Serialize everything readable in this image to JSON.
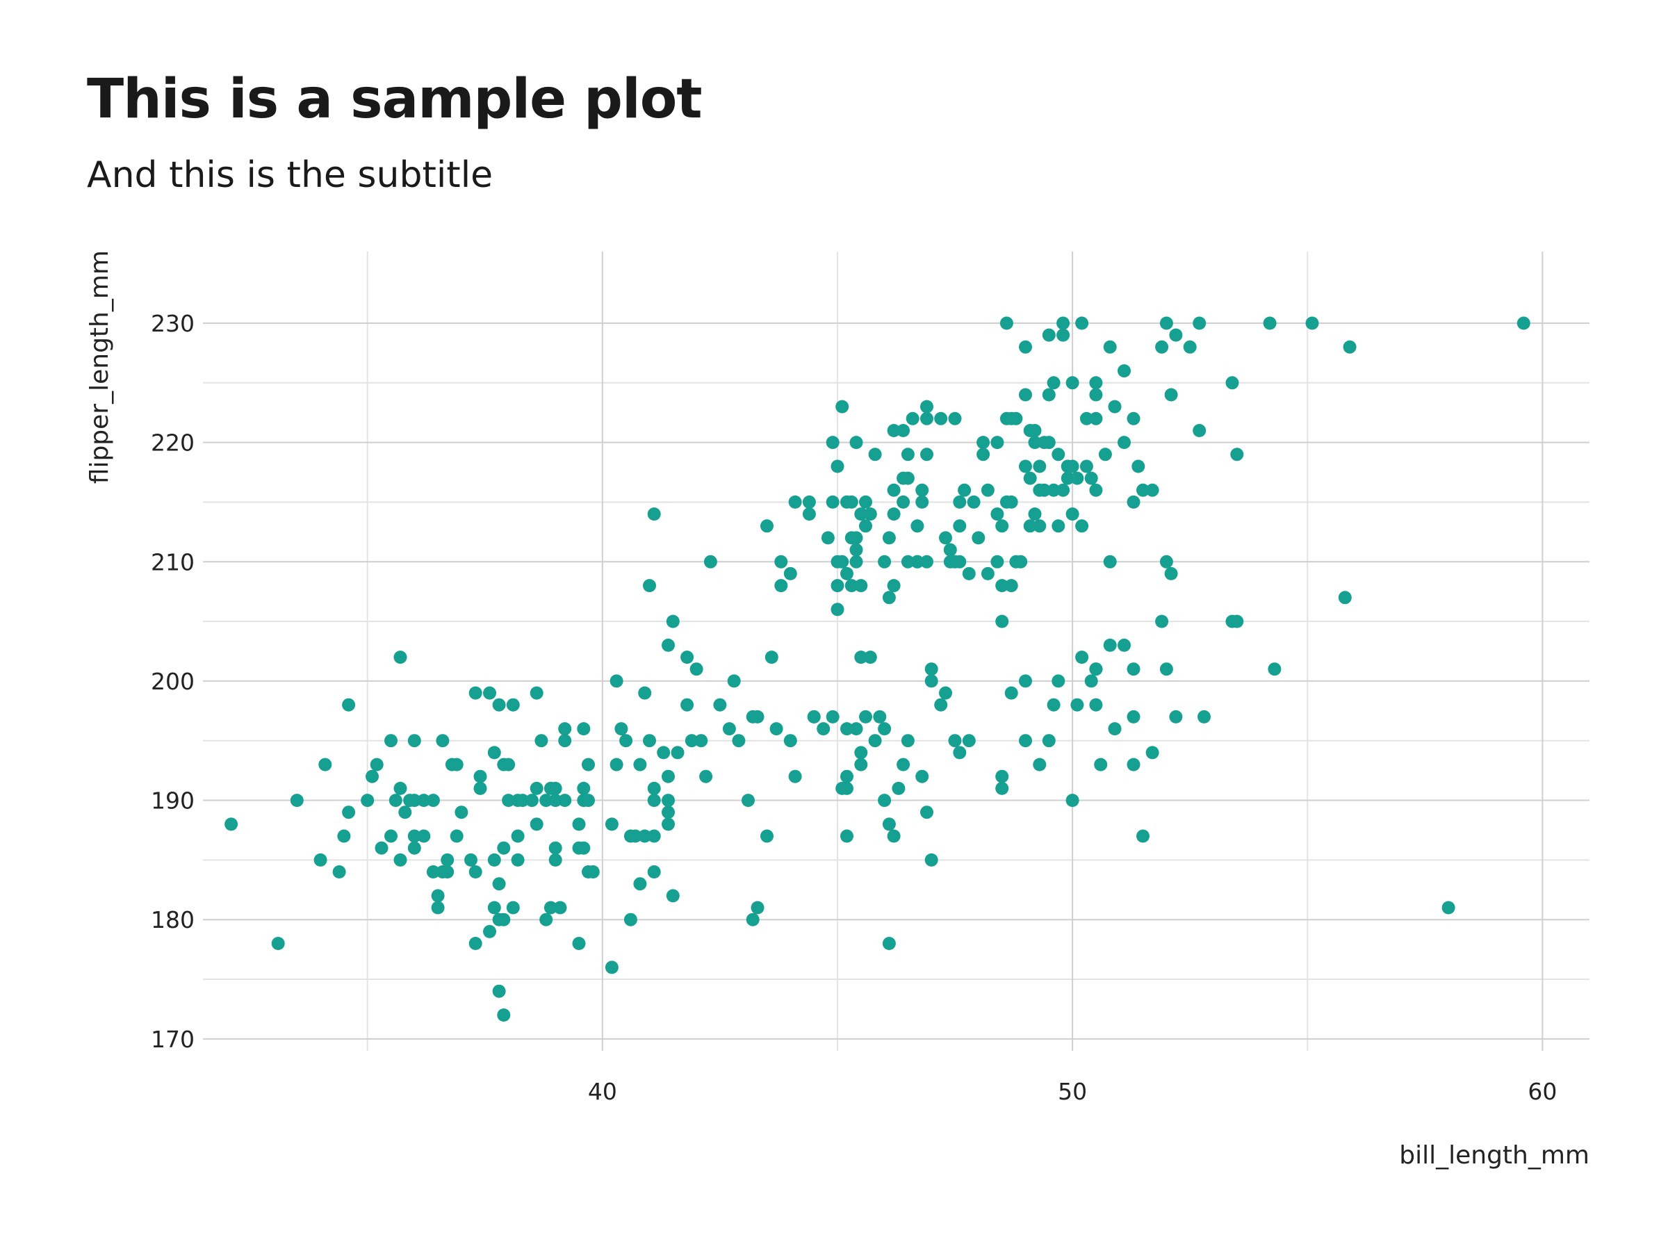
{
  "title": "This is a sample plot",
  "subtitle": "And this is the subtitle",
  "chart_data": {
    "type": "scatter",
    "xlabel": "bill_length_mm",
    "ylabel": "flipper_length_mm",
    "xlim": [
      31.5,
      61
    ],
    "ylim": [
      169,
      236
    ],
    "x_ticks": [
      40,
      50,
      60
    ],
    "y_ticks": [
      170,
      180,
      190,
      200,
      210,
      220,
      230
    ],
    "grid": true,
    "point_color": "#16a092",
    "points": [
      [
        32.1,
        188
      ],
      [
        33.1,
        178
      ],
      [
        33.5,
        190
      ],
      [
        34.0,
        185
      ],
      [
        34.1,
        193
      ],
      [
        34.4,
        184
      ],
      [
        34.5,
        187
      ],
      [
        34.6,
        198
      ],
      [
        34.6,
        189
      ],
      [
        35.0,
        190
      ],
      [
        35.1,
        192
      ],
      [
        35.2,
        193
      ],
      [
        35.3,
        186
      ],
      [
        35.5,
        187
      ],
      [
        35.5,
        195
      ],
      [
        35.6,
        190
      ],
      [
        35.7,
        191
      ],
      [
        35.7,
        185
      ],
      [
        35.7,
        202
      ],
      [
        35.8,
        189
      ],
      [
        35.9,
        190
      ],
      [
        36.0,
        190
      ],
      [
        36.0,
        195
      ],
      [
        36.0,
        186
      ],
      [
        36.0,
        187
      ],
      [
        36.2,
        190
      ],
      [
        36.2,
        187
      ],
      [
        36.4,
        190
      ],
      [
        36.4,
        184
      ],
      [
        36.5,
        181
      ],
      [
        36.5,
        182
      ],
      [
        36.6,
        184
      ],
      [
        36.6,
        195
      ],
      [
        36.7,
        185
      ],
      [
        36.7,
        184
      ],
      [
        36.8,
        193
      ],
      [
        36.9,
        187
      ],
      [
        36.9,
        193
      ],
      [
        37.0,
        189
      ],
      [
        37.2,
        185
      ],
      [
        37.3,
        178
      ],
      [
        37.3,
        184
      ],
      [
        37.3,
        199
      ],
      [
        37.4,
        191
      ],
      [
        37.4,
        192
      ],
      [
        37.6,
        179
      ],
      [
        37.6,
        199
      ],
      [
        37.7,
        185
      ],
      [
        37.7,
        194
      ],
      [
        37.7,
        181
      ],
      [
        37.8,
        174
      ],
      [
        37.8,
        180
      ],
      [
        37.8,
        183
      ],
      [
        37.8,
        198
      ],
      [
        37.9,
        172
      ],
      [
        37.9,
        193
      ],
      [
        37.9,
        186
      ],
      [
        37.9,
        180
      ],
      [
        38.0,
        190
      ],
      [
        38.0,
        193
      ],
      [
        38.1,
        181
      ],
      [
        38.1,
        198
      ],
      [
        38.2,
        185
      ],
      [
        38.2,
        190
      ],
      [
        38.2,
        187
      ],
      [
        38.3,
        190
      ],
      [
        38.5,
        190
      ],
      [
        38.6,
        199
      ],
      [
        38.6,
        188
      ],
      [
        38.6,
        191
      ],
      [
        38.7,
        195
      ],
      [
        38.8,
        190
      ],
      [
        38.8,
        180
      ],
      [
        38.9,
        191
      ],
      [
        38.9,
        181
      ],
      [
        39.0,
        185
      ],
      [
        39.0,
        186
      ],
      [
        39.0,
        190
      ],
      [
        39.0,
        191
      ],
      [
        39.1,
        181
      ],
      [
        39.2,
        190
      ],
      [
        39.2,
        196
      ],
      [
        39.2,
        195
      ],
      [
        39.5,
        188
      ],
      [
        39.5,
        186
      ],
      [
        39.5,
        178
      ],
      [
        39.6,
        190
      ],
      [
        39.6,
        186
      ],
      [
        39.6,
        196
      ],
      [
        39.6,
        191
      ],
      [
        39.7,
        190
      ],
      [
        39.7,
        193
      ],
      [
        39.7,
        184
      ],
      [
        39.8,
        184
      ],
      [
        40.2,
        188
      ],
      [
        40.2,
        176
      ],
      [
        40.3,
        193
      ],
      [
        40.3,
        200
      ],
      [
        40.4,
        196
      ],
      [
        40.5,
        195
      ],
      [
        40.6,
        187
      ],
      [
        40.6,
        180
      ],
      [
        40.7,
        187
      ],
      [
        40.8,
        183
      ],
      [
        40.8,
        193
      ],
      [
        40.9,
        187
      ],
      [
        40.9,
        199
      ],
      [
        41.0,
        195
      ],
      [
        41.0,
        208
      ],
      [
        41.1,
        190
      ],
      [
        41.1,
        191
      ],
      [
        41.1,
        214
      ],
      [
        41.1,
        184
      ],
      [
        41.1,
        187
      ],
      [
        41.3,
        194
      ],
      [
        41.4,
        190
      ],
      [
        41.4,
        189
      ],
      [
        41.4,
        188
      ],
      [
        41.4,
        192
      ],
      [
        41.4,
        203
      ],
      [
        41.5,
        182
      ],
      [
        41.5,
        205
      ],
      [
        41.6,
        194
      ],
      [
        41.8,
        198
      ],
      [
        41.8,
        202
      ],
      [
        41.9,
        195
      ],
      [
        42.0,
        201
      ],
      [
        42.1,
        195
      ],
      [
        42.2,
        192
      ],
      [
        42.3,
        210
      ],
      [
        42.5,
        198
      ],
      [
        42.7,
        196
      ],
      [
        42.8,
        200
      ],
      [
        42.9,
        195
      ],
      [
        43.1,
        190
      ],
      [
        43.2,
        180
      ],
      [
        43.2,
        197
      ],
      [
        43.3,
        197
      ],
      [
        43.3,
        181
      ],
      [
        43.5,
        187
      ],
      [
        43.5,
        213
      ],
      [
        43.6,
        202
      ],
      [
        43.7,
        196
      ],
      [
        43.8,
        210
      ],
      [
        43.8,
        208
      ],
      [
        44.0,
        195
      ],
      [
        44.0,
        209
      ],
      [
        44.1,
        192
      ],
      [
        44.1,
        215
      ],
      [
        44.5,
        197
      ],
      [
        44.5,
        197
      ],
      [
        44.7,
        196
      ],
      [
        44.9,
        197
      ],
      [
        45.0,
        208
      ],
      [
        45.0,
        218
      ],
      [
        45.0,
        206
      ],
      [
        45.2,
        196
      ],
      [
        45.2,
        215
      ],
      [
        45.2,
        187
      ],
      [
        45.2,
        192
      ],
      [
        45.2,
        209
      ],
      [
        45.3,
        208
      ],
      [
        45.4,
        211
      ],
      [
        45.4,
        220
      ],
      [
        45.5,
        202
      ],
      [
        45.5,
        208
      ],
      [
        45.6,
        213
      ],
      [
        45.7,
        202
      ],
      [
        46.0,
        196
      ],
      [
        46.1,
        207
      ],
      [
        46.1,
        212
      ],
      [
        46.2,
        208
      ],
      [
        46.2,
        214
      ],
      [
        46.2,
        216
      ],
      [
        46.4,
        215
      ],
      [
        46.5,
        219
      ],
      [
        46.5,
        217
      ],
      [
        46.7,
        210
      ],
      [
        46.8,
        216
      ],
      [
        46.8,
        215
      ],
      [
        46.9,
        210
      ],
      [
        46.9,
        223
      ],
      [
        47.0,
        200
      ],
      [
        47.0,
        201
      ],
      [
        47.2,
        198
      ],
      [
        47.3,
        212
      ],
      [
        47.4,
        210
      ],
      [
        47.5,
        210
      ],
      [
        47.6,
        215
      ],
      [
        47.6,
        213
      ],
      [
        47.7,
        216
      ],
      [
        47.8,
        195
      ],
      [
        47.8,
        209
      ],
      [
        47.9,
        215
      ],
      [
        48.1,
        220
      ],
      [
        48.1,
        219
      ],
      [
        48.2,
        216
      ],
      [
        48.2,
        209
      ],
      [
        48.4,
        214
      ],
      [
        48.4,
        210
      ],
      [
        48.5,
        192
      ],
      [
        48.5,
        213
      ],
      [
        48.6,
        215
      ],
      [
        48.7,
        199
      ],
      [
        48.7,
        208
      ],
      [
        48.8,
        210
      ],
      [
        49.0,
        200
      ],
      [
        49.1,
        221
      ],
      [
        49.2,
        220
      ],
      [
        49.2,
        221
      ],
      [
        49.3,
        213
      ],
      [
        49.4,
        220
      ],
      [
        49.5,
        220
      ],
      [
        49.6,
        216
      ],
      [
        49.7,
        219
      ],
      [
        49.8,
        216
      ],
      [
        49.9,
        217
      ],
      [
        50.0,
        214
      ],
      [
        50.1,
        217
      ],
      [
        50.2,
        213
      ],
      [
        50.3,
        222
      ],
      [
        50.4,
        217
      ],
      [
        50.5,
        216
      ],
      [
        50.7,
        219
      ],
      [
        50.8,
        210
      ],
      [
        51.1,
        220
      ],
      [
        51.3,
        215
      ],
      [
        51.5,
        216
      ],
      [
        51.7,
        216
      ],
      [
        51.9,
        228
      ],
      [
        52.0,
        230
      ],
      [
        52.1,
        224
      ],
      [
        52.2,
        229
      ],
      [
        52.5,
        228
      ],
      [
        52.7,
        230
      ],
      [
        53.4,
        225
      ],
      [
        54.2,
        230
      ],
      [
        55.1,
        230
      ],
      [
        55.9,
        228
      ],
      [
        59.6,
        230
      ],
      [
        58.0,
        181
      ],
      [
        55.8,
        207
      ],
      [
        54.3,
        201
      ],
      [
        53.5,
        205
      ],
      [
        52.8,
        197
      ],
      [
        52.0,
        201
      ],
      [
        51.9,
        205
      ],
      [
        51.3,
        193
      ],
      [
        51.3,
        197
      ],
      [
        51.5,
        187
      ],
      [
        51.7,
        194
      ],
      [
        50.0,
        190
      ],
      [
        50.1,
        198
      ],
      [
        50.5,
        198
      ],
      [
        50.5,
        201
      ],
      [
        50.6,
        193
      ],
      [
        50.9,
        196
      ],
      [
        50.2,
        202
      ],
      [
        49.6,
        198
      ],
      [
        49.3,
        193
      ],
      [
        49.5,
        195
      ],
      [
        49.0,
        195
      ],
      [
        48.5,
        191
      ],
      [
        47.5,
        195
      ],
      [
        46.9,
        189
      ],
      [
        46.8,
        192
      ],
      [
        47.0,
        185
      ],
      [
        46.4,
        193
      ],
      [
        46.2,
        187
      ],
      [
        45.8,
        195
      ],
      [
        45.5,
        194
      ],
      [
        45.4,
        196
      ],
      [
        45.2,
        191
      ],
      [
        45.1,
        191
      ],
      [
        46.1,
        178
      ],
      [
        45.5,
        193
      ],
      [
        45.6,
        197
      ],
      [
        46.0,
        190
      ],
      [
        46.5,
        195
      ],
      [
        45.9,
        197
      ],
      [
        46.3,
        191
      ],
      [
        46.1,
        188
      ],
      [
        47.3,
        199
      ],
      [
        47.6,
        194
      ],
      [
        50.8,
        203
      ],
      [
        51.1,
        203
      ],
      [
        51.3,
        201
      ],
      [
        50.4,
        200
      ],
      [
        50.5,
        201
      ],
      [
        49.7,
        200
      ],
      [
        52.2,
        197
      ],
      [
        53.4,
        205
      ],
      [
        52.0,
        210
      ],
      [
        52.7,
        221
      ],
      [
        53.5,
        219
      ],
      [
        52.1,
        209
      ],
      [
        50.0,
        225
      ],
      [
        50.0,
        218
      ],
      [
        50.5,
        225
      ],
      [
        50.5,
        224
      ],
      [
        50.9,
        223
      ],
      [
        51.1,
        226
      ],
      [
        51.4,
        218
      ],
      [
        51.3,
        222
      ],
      [
        50.3,
        218
      ],
      [
        49.9,
        218
      ],
      [
        49.6,
        225
      ],
      [
        49.8,
        229
      ],
      [
        49.5,
        229
      ],
      [
        49.0,
        228
      ],
      [
        48.7,
        222
      ],
      [
        48.8,
        222
      ],
      [
        49.5,
        224
      ],
      [
        49.0,
        224
      ],
      [
        48.6,
        230
      ],
      [
        49.1,
        213
      ],
      [
        49.8,
        230
      ],
      [
        50.2,
        230
      ],
      [
        50.5,
        222
      ],
      [
        50.8,
        228
      ],
      [
        47.5,
        222
      ],
      [
        47.2,
        222
      ],
      [
        46.4,
        217
      ],
      [
        46.6,
        222
      ],
      [
        46.9,
        222
      ],
      [
        45.1,
        223
      ],
      [
        44.9,
        220
      ],
      [
        45.3,
        215
      ],
      [
        45.4,
        210
      ],
      [
        45.5,
        214
      ],
      [
        45.3,
        212
      ],
      [
        45.1,
        210
      ],
      [
        44.9,
        215
      ],
      [
        44.4,
        215
      ],
      [
        44.4,
        214
      ],
      [
        44.8,
        212
      ],
      [
        45.0,
        210
      ],
      [
        45.6,
        215
      ],
      [
        45.4,
        212
      ],
      [
        46.0,
        210
      ],
      [
        46.7,
        210
      ],
      [
        46.5,
        210
      ],
      [
        46.2,
        221
      ],
      [
        46.4,
        221
      ],
      [
        46.7,
        213
      ],
      [
        46.9,
        219
      ],
      [
        45.7,
        214
      ],
      [
        45.8,
        219
      ],
      [
        47.4,
        211
      ],
      [
        47.6,
        210
      ],
      [
        48.0,
        212
      ],
      [
        48.5,
        208
      ],
      [
        48.7,
        215
      ],
      [
        48.4,
        220
      ],
      [
        48.6,
        222
      ],
      [
        48.9,
        210
      ],
      [
        49.0,
        218
      ],
      [
        49.1,
        217
      ],
      [
        49.3,
        216
      ],
      [
        49.4,
        216
      ],
      [
        48.5,
        205
      ],
      [
        49.2,
        214
      ],
      [
        49.3,
        218
      ],
      [
        49.9,
        218
      ],
      [
        49.7,
        213
      ]
    ]
  }
}
